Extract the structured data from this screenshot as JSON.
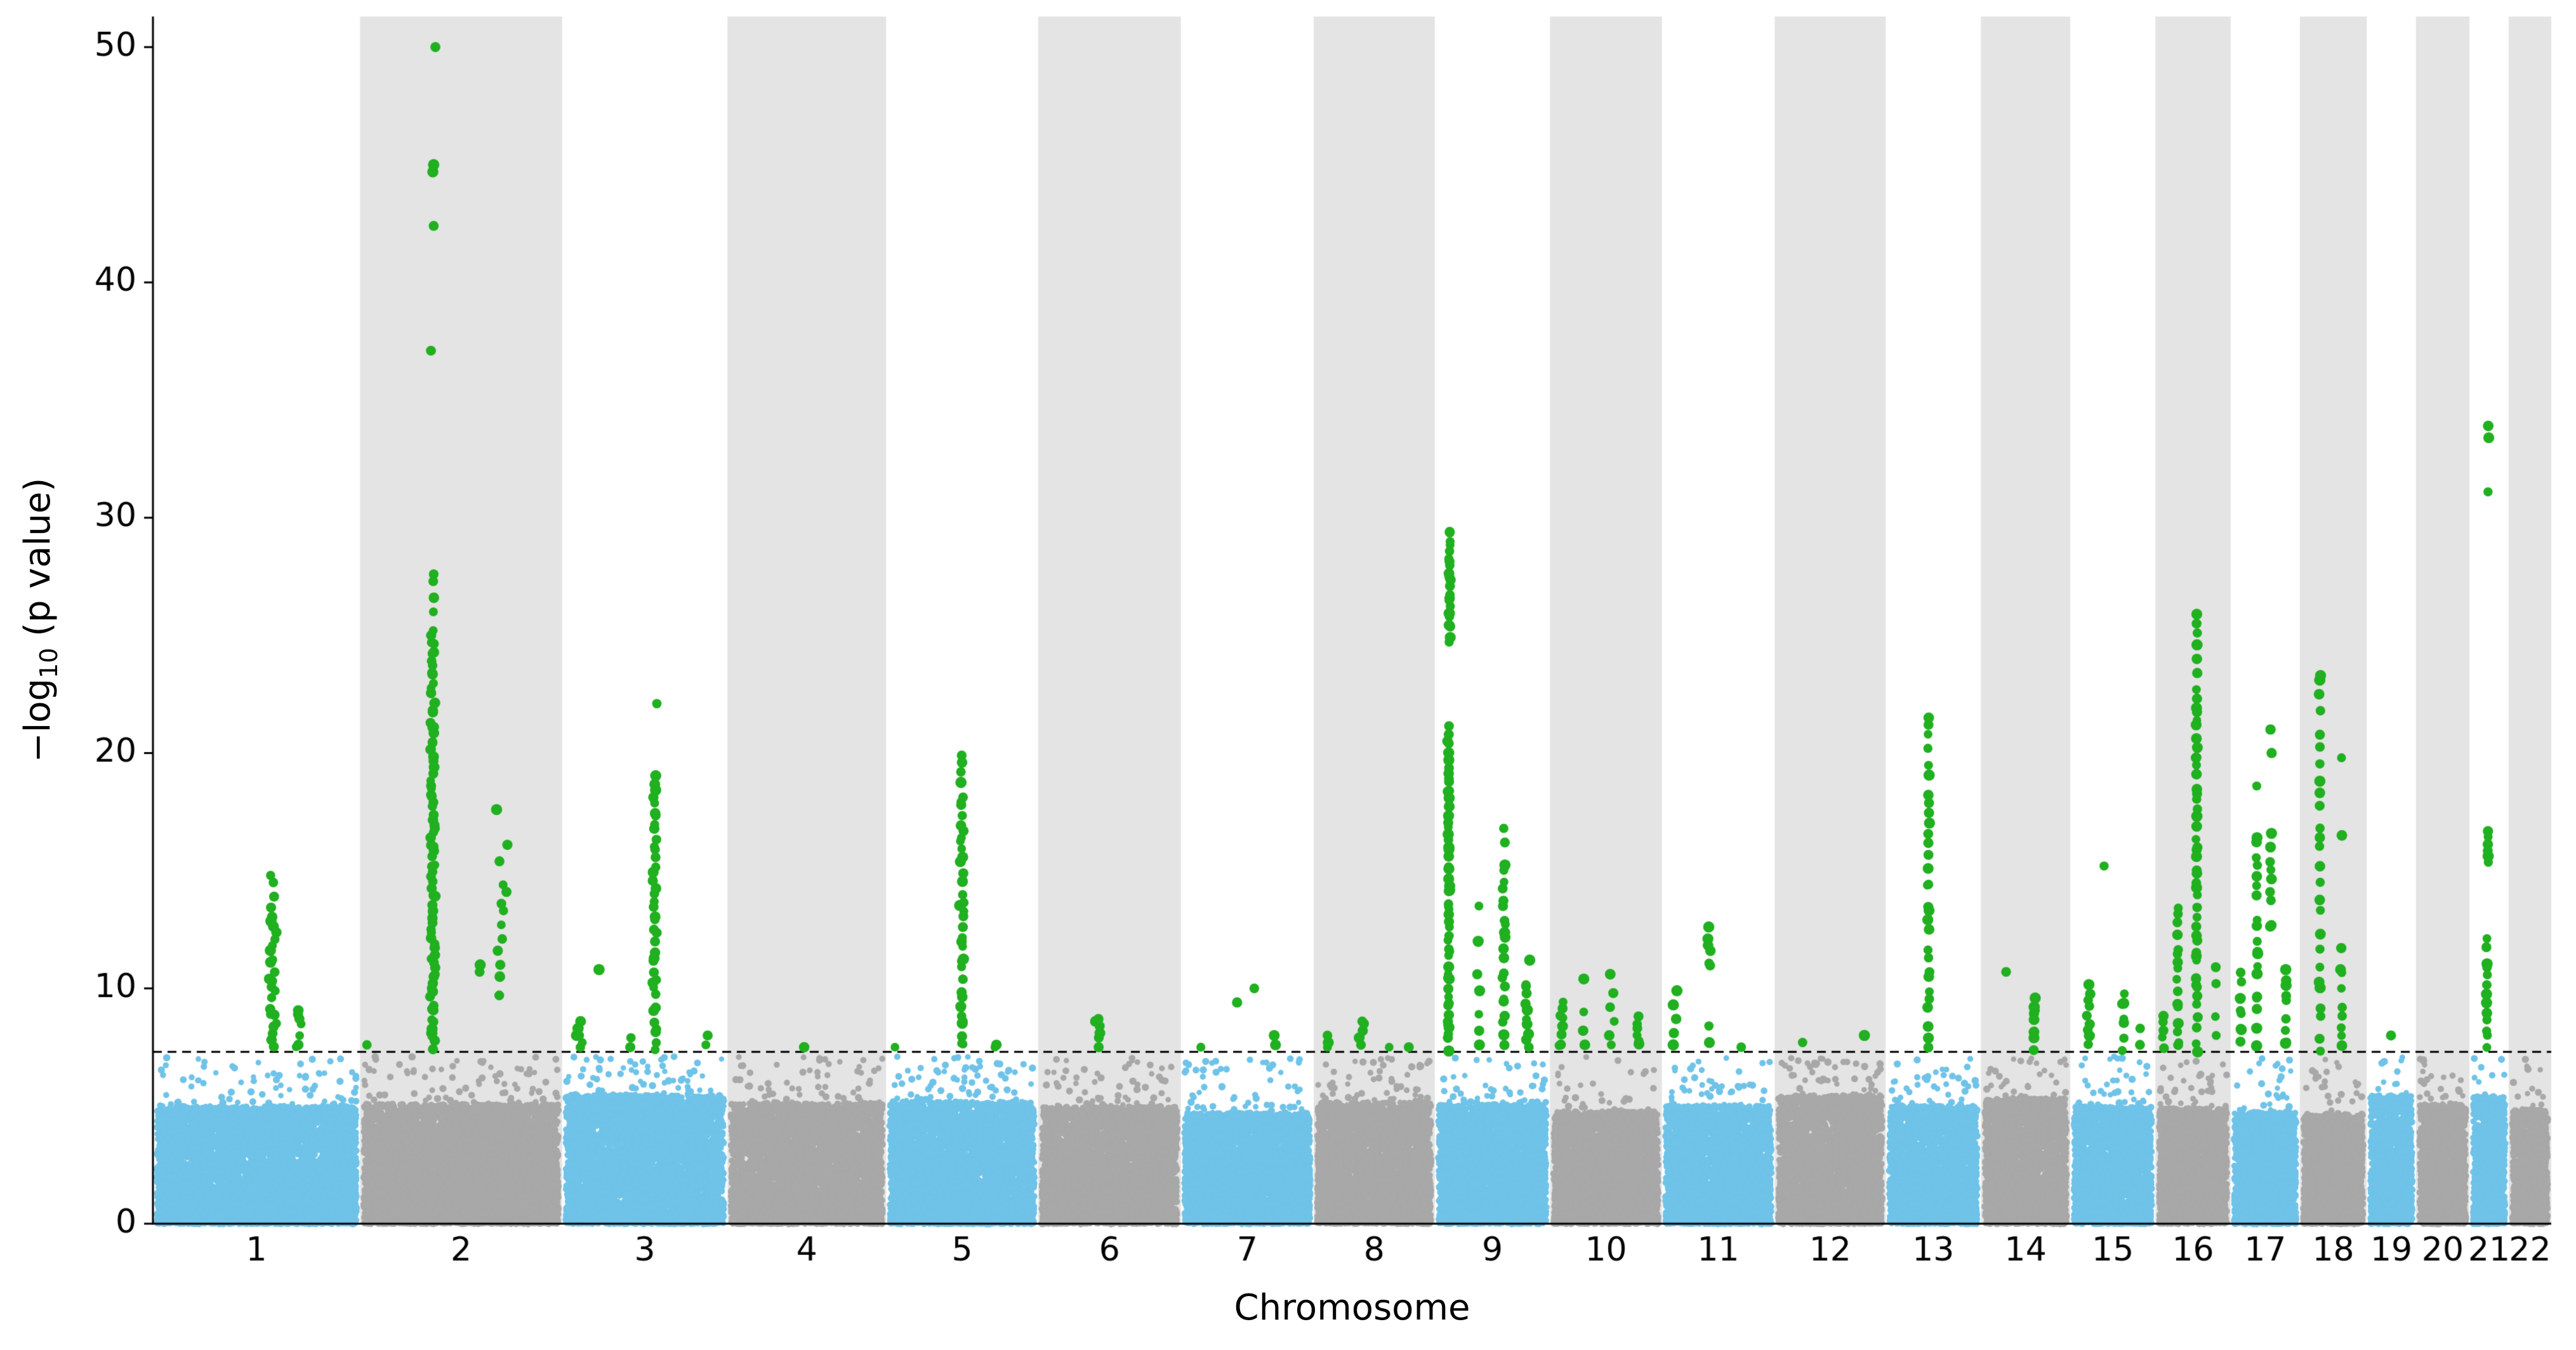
{
  "figure": {
    "xlabel": "Chromosome",
    "ylabel_pre": "−log",
    "ylabel_sub": "10",
    "ylabel_post": " (p value)"
  },
  "chart_data": {
    "type": "scatter",
    "subtype": "manhattan",
    "title": "",
    "xlabel": "Chromosome",
    "ylabel": "-log10 (p value)",
    "ylim": [
      0,
      51.3
    ],
    "yticks": [
      0,
      10,
      20,
      30,
      40,
      50
    ],
    "genome_wide_threshold": 7.3,
    "threshold_line_style": "dashed",
    "grid": false,
    "legend": "none",
    "colors": {
      "point_odd": "#6fc3e8",
      "point_even": "#a8a8a8",
      "point_significant": "#20b020",
      "band": "#e4e4e4",
      "threshold_line": "#000000",
      "axis": "#000000"
    },
    "noise": {
      "points_per_mb": 24,
      "block_top": 5.0,
      "tail_max": 7.1
    },
    "chromosomes": [
      {
        "label": "1",
        "length_mb": 248,
        "significant_peaks": [
          {
            "pos": 0.58,
            "spread": 0.02,
            "fill": [
              7.5,
              13.3,
              24
            ],
            "dots": [
              13.9,
              14.5,
              14.8
            ]
          },
          {
            "pos": 0.7,
            "spread": 0.015,
            "fill": [
              7.5,
              9.2,
              7
            ],
            "dots": []
          }
        ]
      },
      {
        "label": "2",
        "length_mb": 242,
        "significant_peaks": [
          {
            "pos": 0.03,
            "spread": 0.005,
            "dots": [
              7.6
            ]
          },
          {
            "pos": 0.36,
            "spread": 0.012,
            "fill": [
              7.5,
              25.2,
              85
            ],
            "dots": [
              26.0,
              26.6,
              27.3,
              27.6,
              37.1,
              42.4,
              44.7,
              45.0,
              50.0
            ]
          },
          {
            "pos": 0.6,
            "spread": 0.01,
            "dots": [
              10.7,
              11.0
            ]
          },
          {
            "pos": 0.7,
            "spread": 0.045,
            "dots": [
              9.7,
              10.5,
              11.0,
              11.6,
              12.1,
              12.7,
              13.3,
              13.6,
              14.1,
              14.4,
              15.4,
              16.1,
              17.6
            ]
          }
        ]
      },
      {
        "label": "3",
        "length_mb": 198,
        "significant_peaks": [
          {
            "pos": 0.1,
            "spread": 0.04,
            "dots": [
              7.5,
              7.7,
              8.0,
              8.3,
              8.6,
              8.0
            ]
          },
          {
            "pos": 0.22,
            "spread": 0.008,
            "dots": [
              10.8
            ]
          },
          {
            "pos": 0.42,
            "spread": 0.01,
            "dots": [
              7.5,
              7.9
            ]
          },
          {
            "pos": 0.56,
            "spread": 0.012,
            "fill": [
              7.5,
              19.0,
              40
            ],
            "dots": [
              22.1
            ]
          },
          {
            "pos": 0.88,
            "spread": 0.015,
            "dots": [
              7.6,
              8.0
            ]
          }
        ]
      },
      {
        "label": "4",
        "length_mb": 190,
        "significant_peaks": [
          {
            "pos": 0.48,
            "spread": 0.006,
            "dots": [
              7.5
            ]
          }
        ]
      },
      {
        "label": "5",
        "length_mb": 182,
        "significant_peaks": [
          {
            "pos": 0.06,
            "spread": 0.006,
            "dots": [
              7.5
            ]
          },
          {
            "pos": 0.5,
            "spread": 0.012,
            "fill": [
              7.5,
              18.6,
              38
            ],
            "dots": [
              19.2,
              19.6,
              19.9
            ]
          },
          {
            "pos": 0.72,
            "spread": 0.012,
            "dots": [
              7.5,
              7.6
            ]
          }
        ]
      },
      {
        "label": "6",
        "length_mb": 171,
        "significant_peaks": [
          {
            "pos": 0.42,
            "spread": 0.025,
            "dots": [
              7.5,
              7.9,
              8.1,
              8.4,
              8.6,
              8.7
            ]
          }
        ]
      },
      {
        "label": "7",
        "length_mb": 159,
        "significant_peaks": [
          {
            "pos": 0.15,
            "spread": 0.006,
            "dots": [
              7.5
            ]
          },
          {
            "pos": 0.42,
            "spread": 0.006,
            "dots": [
              9.4
            ]
          },
          {
            "pos": 0.55,
            "spread": 0.006,
            "dots": [
              10.0
            ]
          },
          {
            "pos": 0.7,
            "spread": 0.02,
            "dots": [
              7.6,
              8.0
            ]
          }
        ]
      },
      {
        "label": "8",
        "length_mb": 145,
        "significant_peaks": [
          {
            "pos": 0.12,
            "spread": 0.02,
            "dots": [
              7.5,
              7.7,
              8.0
            ]
          },
          {
            "pos": 0.4,
            "spread": 0.03,
            "dots": [
              7.6,
              7.9,
              8.2,
              8.5,
              8.6
            ]
          },
          {
            "pos": 0.62,
            "spread": 0.008,
            "dots": [
              7.5
            ]
          },
          {
            "pos": 0.78,
            "spread": 0.008,
            "dots": [
              7.5
            ]
          }
        ]
      },
      {
        "label": "9",
        "length_mb": 138,
        "significant_peaks": [
          {
            "pos": 0.12,
            "spread": 0.01,
            "fill": [
              7.5,
              21.0,
              55
            ],
            "dots": []
          },
          {
            "pos": 0.13,
            "spread": 0.008,
            "fill": [
              24.8,
              29.5,
              22
            ],
            "dots": []
          },
          {
            "pos": 0.38,
            "spread": 0.025,
            "dots": [
              13.5,
              12.0,
              10.6,
              9.9,
              8.9,
              8.2,
              7.6
            ]
          },
          {
            "pos": 0.6,
            "spread": 0.012,
            "fill": [
              7.5,
              15.3,
              22
            ],
            "dots": [
              16.2,
              16.8
            ]
          },
          {
            "pos": 0.8,
            "spread": 0.02,
            "fill": [
              7.5,
              10.3,
              10
            ],
            "dots": [
              11.2
            ]
          }
        ]
      },
      {
        "label": "10",
        "length_mb": 134,
        "significant_peaks": [
          {
            "pos": 0.1,
            "spread": 0.02,
            "fill": [
              7.5,
              9.4,
              8
            ],
            "dots": []
          },
          {
            "pos": 0.3,
            "spread": 0.015,
            "dots": [
              10.4,
              9.0,
              8.2,
              7.6
            ]
          },
          {
            "pos": 0.55,
            "spread": 0.025,
            "dots": [
              10.6,
              9.8,
              9.2,
              8.6,
              8.0,
              7.6
            ]
          },
          {
            "pos": 0.78,
            "spread": 0.02,
            "fill": [
              7.5,
              8.9,
              6
            ],
            "dots": []
          }
        ]
      },
      {
        "label": "11",
        "length_mb": 135,
        "significant_peaks": [
          {
            "pos": 0.12,
            "spread": 0.02,
            "dots": [
              9.9,
              9.3,
              8.7,
              8.1,
              7.6
            ]
          },
          {
            "pos": 0.42,
            "spread": 0.012,
            "fill": [
              10.8,
              12.6,
              6
            ],
            "dots": [
              8.4,
              7.7
            ]
          },
          {
            "pos": 0.7,
            "spread": 0.008,
            "dots": [
              7.5
            ]
          }
        ]
      },
      {
        "label": "12",
        "length_mb": 133,
        "significant_peaks": [
          {
            "pos": 0.25,
            "spread": 0.008,
            "dots": [
              7.7
            ]
          },
          {
            "pos": 0.8,
            "spread": 0.008,
            "dots": [
              8.0
            ]
          }
        ]
      },
      {
        "label": "13",
        "length_mb": 114,
        "significant_peaks": [
          {
            "pos": 0.45,
            "spread": 0.012,
            "fill": [
              7.6,
              19.3,
              26
            ],
            "dots": [
              20.2,
              20.8,
              21.2,
              21.5
            ]
          }
        ]
      },
      {
        "label": "14",
        "length_mb": 107,
        "significant_peaks": [
          {
            "pos": 0.28,
            "spread": 0.008,
            "dots": [
              10.7
            ]
          },
          {
            "pos": 0.6,
            "spread": 0.012,
            "fill": [
              7.5,
              9.6,
              9
            ],
            "dots": []
          }
        ]
      },
      {
        "label": "15",
        "length_mb": 102,
        "significant_peaks": [
          {
            "pos": 0.22,
            "spread": 0.03,
            "fill": [
              7.5,
              10.0,
              10
            ],
            "dots": []
          },
          {
            "pos": 0.4,
            "spread": 0.006,
            "dots": [
              15.2
            ]
          },
          {
            "pos": 0.62,
            "spread": 0.02,
            "fill": [
              7.5,
              9.9,
              7
            ],
            "dots": []
          },
          {
            "pos": 0.82,
            "spread": 0.01,
            "dots": [
              8.3,
              7.6
            ]
          }
        ]
      },
      {
        "label": "16",
        "length_mb": 90,
        "significant_peaks": [
          {
            "pos": 0.1,
            "spread": 0.012,
            "fill": [
              7.5,
              9.0,
              5
            ],
            "dots": []
          },
          {
            "pos": 0.3,
            "spread": 0.012,
            "fill": [
              7.5,
              13.4,
              16
            ],
            "dots": []
          },
          {
            "pos": 0.55,
            "spread": 0.012,
            "fill": [
              7.5,
              22.8,
              45
            ],
            "dots": [
              23.4,
              24.0,
              24.6,
              25.1,
              25.5,
              25.9
            ]
          },
          {
            "pos": 0.8,
            "spread": 0.015,
            "dots": [
              10.9,
              10.2,
              8.8,
              8.0
            ]
          }
        ]
      },
      {
        "label": "17",
        "length_mb": 83,
        "significant_peaks": [
          {
            "pos": 0.15,
            "spread": 0.02,
            "fill": [
              7.6,
              10.5,
              8
            ],
            "dots": []
          },
          {
            "pos": 0.38,
            "spread": 0.012,
            "fill": [
              7.5,
              16.5,
              20
            ],
            "dots": [
              18.6
            ]
          },
          {
            "pos": 0.58,
            "spread": 0.012,
            "fill": [
              12.5,
              16.4,
              9
            ],
            "dots": [
              20.0,
              21.0
            ]
          },
          {
            "pos": 0.8,
            "spread": 0.015,
            "fill": [
              7.5,
              11.0,
              9
            ],
            "dots": []
          }
        ]
      },
      {
        "label": "18",
        "length_mb": 80,
        "significant_peaks": [
          {
            "pos": 0.3,
            "spread": 0.012,
            "fill": [
              7.5,
              20.8,
              22
            ],
            "dots": [
              21.8,
              22.5,
              23.1,
              23.3
            ]
          },
          {
            "pos": 0.62,
            "spread": 0.015,
            "fill": [
              7.5,
              11.5,
              9
            ],
            "dots": [
              16.5,
              19.8
            ]
          }
        ]
      },
      {
        "label": "19",
        "length_mb": 59,
        "significant_peaks": [
          {
            "pos": 0.5,
            "spread": 0.008,
            "dots": [
              8.0
            ]
          }
        ]
      },
      {
        "label": "20",
        "length_mb": 64,
        "significant_peaks": []
      },
      {
        "label": "21",
        "length_mb": 47,
        "significant_peaks": [
          {
            "pos": 0.45,
            "spread": 0.015,
            "fill": [
              7.5,
              12.0,
              13
            ],
            "dots": []
          },
          {
            "pos": 0.48,
            "spread": 0.01,
            "fill": [
              15.3,
              16.6,
              6
            ],
            "dots": [
              31.1,
              33.4,
              33.9
            ]
          }
        ]
      },
      {
        "label": "22",
        "length_mb": 51,
        "significant_peaks": []
      }
    ]
  }
}
